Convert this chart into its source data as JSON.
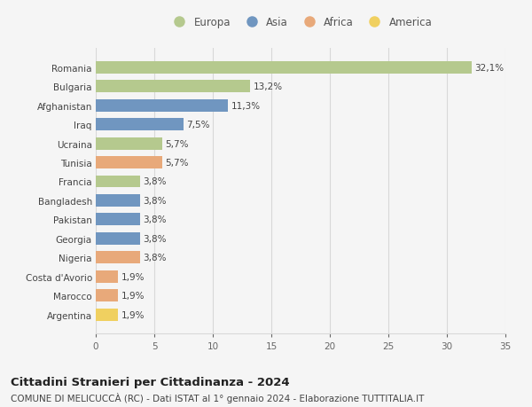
{
  "countries": [
    "Romania",
    "Bulgaria",
    "Afghanistan",
    "Iraq",
    "Ucraina",
    "Tunisia",
    "Francia",
    "Bangladesh",
    "Pakistan",
    "Georgia",
    "Nigeria",
    "Costa d'Avorio",
    "Marocco",
    "Argentina"
  ],
  "values": [
    32.1,
    13.2,
    11.3,
    7.5,
    5.7,
    5.7,
    3.8,
    3.8,
    3.8,
    3.8,
    3.8,
    1.9,
    1.9,
    1.9
  ],
  "labels": [
    "32,1%",
    "13,2%",
    "11,3%",
    "7,5%",
    "5,7%",
    "5,7%",
    "3,8%",
    "3,8%",
    "3,8%",
    "3,8%",
    "3,8%",
    "1,9%",
    "1,9%",
    "1,9%"
  ],
  "continents": [
    "Europa",
    "Europa",
    "Asia",
    "Asia",
    "Europa",
    "Africa",
    "Europa",
    "Asia",
    "Asia",
    "Asia",
    "Africa",
    "Africa",
    "Africa",
    "America"
  ],
  "colors": {
    "Europa": "#b5c98e",
    "Asia": "#7096c0",
    "Africa": "#e8a97a",
    "America": "#f0d060"
  },
  "legend_order": [
    "Europa",
    "Asia",
    "Africa",
    "America"
  ],
  "xlim": [
    0,
    35
  ],
  "xticks": [
    0,
    5,
    10,
    15,
    20,
    25,
    30,
    35
  ],
  "title": "Cittadini Stranieri per Cittadinanza - 2024",
  "subtitle": "COMUNE DI MELICUCCÀ (RC) - Dati ISTAT al 1° gennaio 2024 - Elaborazione TUTTITALIA.IT",
  "bg_color": "#f5f5f5",
  "grid_color": "#d8d8d8",
  "bar_height": 0.65,
  "label_fontsize": 7.5,
  "tick_fontsize": 7.5,
  "title_fontsize": 9.5,
  "subtitle_fontsize": 7.5,
  "legend_fontsize": 8.5
}
